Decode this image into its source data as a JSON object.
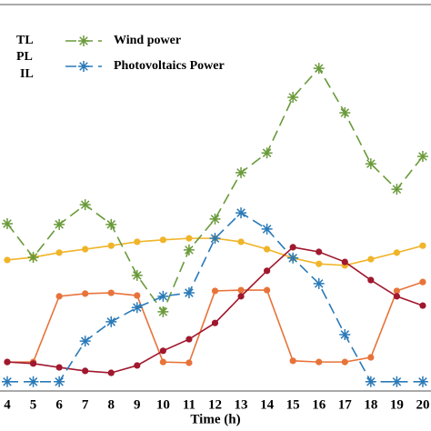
{
  "chart_data": {
    "type": "line",
    "xlabel": "Time (h)",
    "categories": [
      "4",
      "5",
      "6",
      "7",
      "8",
      "9",
      "10",
      "11",
      "12",
      "13",
      "14",
      "15",
      "16",
      "17",
      "18",
      "19",
      "20"
    ],
    "ylim": [
      0,
      100
    ],
    "series": [
      {
        "name": "TL",
        "color": "#f0b429",
        "marker": "circle",
        "dash": false,
        "values": [
          33.9,
          34.6,
          35.8,
          36.7,
          37.6,
          38.6,
          39.1,
          39.5,
          39.5,
          38.6,
          36.7,
          34.4,
          32.9,
          32.5,
          34.1,
          35.8,
          37.6
        ]
      },
      {
        "name": "PL",
        "color": "#e8733a",
        "marker": "circle",
        "dash": false,
        "values": [
          7.5,
          7.5,
          24.5,
          25.2,
          25.4,
          24.7,
          7.5,
          7.3,
          25.9,
          26.1,
          26.1,
          7.8,
          7.5,
          7.5,
          8.7,
          25.9,
          28.2
        ]
      },
      {
        "name": "IL",
        "color": "#a0182e",
        "marker": "circle",
        "dash": false,
        "values": [
          7.5,
          7.1,
          6.1,
          5.2,
          4.7,
          6.6,
          10.4,
          13.4,
          17.6,
          24.5,
          31.1,
          37.2,
          36.0,
          33.4,
          28.7,
          24.5,
          22.1
        ]
      },
      {
        "name": "Wind power",
        "color": "#6a9a3a",
        "marker": "star",
        "dash": true,
        "values": [
          43.3,
          34.6,
          43.1,
          48.2,
          43.1,
          29.9,
          20.5,
          36.5,
          44.5,
          56.5,
          61.6,
          76.0,
          83.5,
          72.0,
          58.8,
          52.2,
          60.7
        ]
      },
      {
        "name": "Photovoltaics Power",
        "color": "#2a7ab8",
        "marker": "star",
        "dash": true,
        "values": [
          2.4,
          2.4,
          2.4,
          12.9,
          17.9,
          21.6,
          24.5,
          25.4,
          39.5,
          46.1,
          41.9,
          34.4,
          27.8,
          14.6,
          2.4,
          2.4,
          2.4
        ]
      }
    ]
  }
}
